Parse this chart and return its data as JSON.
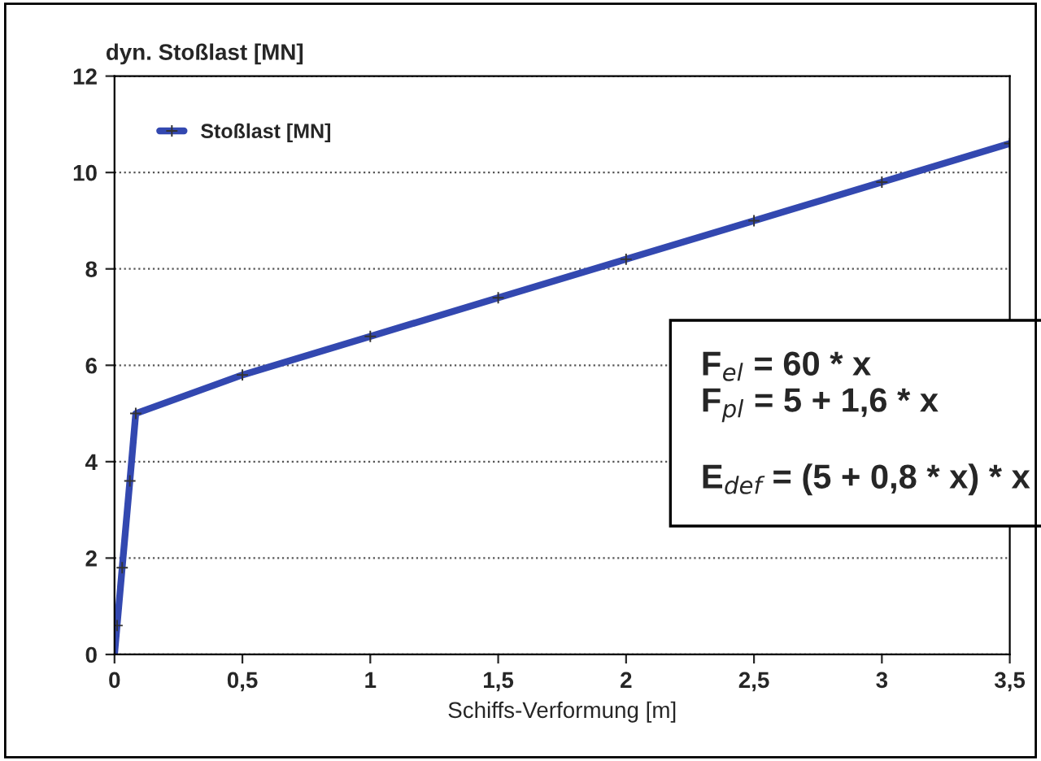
{
  "chart_data": {
    "type": "line",
    "ylabel": "dyn. Stoßlast [MN]",
    "xlabel": "Schiffs-Verformung [m]",
    "x": [
      0,
      0.01,
      0.03,
      0.06,
      0.083,
      0.5,
      1,
      1.5,
      2,
      2.5,
      3,
      3.5
    ],
    "series": [
      {
        "name": "Stoßlast [MN]",
        "color": "#3348b0",
        "values": [
          0,
          0.6,
          1.8,
          3.6,
          5.0,
          5.8,
          6.6,
          7.4,
          8.2,
          9.0,
          9.8,
          10.6
        ]
      }
    ],
    "xlim": [
      0,
      3.5
    ],
    "ylim": [
      0,
      12
    ],
    "xticks": [
      0,
      {
        "value": 0.5,
        "label": "0,5"
      },
      1,
      {
        "value": 1.5,
        "label": "1,5"
      },
      2,
      {
        "value": 2.5,
        "label": "2,5"
      },
      3,
      {
        "value": 3.5,
        "label": "3,5"
      }
    ],
    "yticks": [
      0,
      2,
      4,
      6,
      8,
      10,
      12
    ],
    "grid": "y",
    "legend": "top left",
    "marker": "cross",
    "line_style": "solid",
    "annotations": [
      "F$_{el}$ = 60 * x\nF$_{pl}$ = 5 + 1,6 * x\n\nE$_{def}$ = (5 + 0,8 * x) * x"
    ]
  }
}
